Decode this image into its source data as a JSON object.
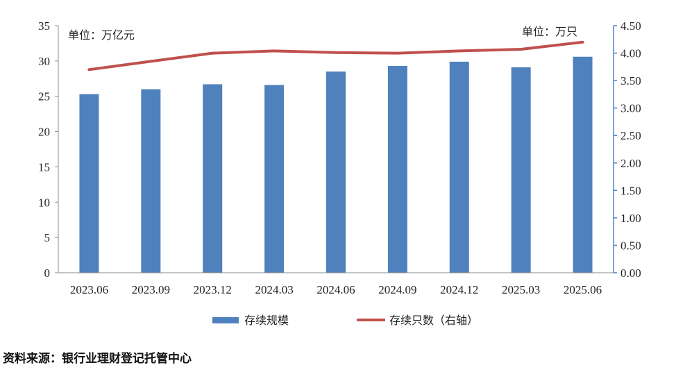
{
  "chart_data": {
    "type": "bar+line",
    "categories": [
      "2023.06",
      "2023.09",
      "2023.12",
      "2024.03",
      "2024.06",
      "2024.09",
      "2024.12",
      "2025.03",
      "2025.06"
    ],
    "series": [
      {
        "name": "存续规模",
        "type": "bar",
        "axis": "left",
        "values": [
          25.3,
          26.0,
          26.7,
          26.6,
          28.5,
          29.3,
          29.9,
          29.1,
          30.6
        ]
      },
      {
        "name": "存续只数（右轴）",
        "type": "line",
        "axis": "right",
        "values": [
          3.7,
          3.85,
          4.0,
          4.04,
          4.01,
          4.0,
          4.04,
          4.07,
          4.2
        ]
      }
    ],
    "y_left": {
      "min": 0,
      "max": 35,
      "step": 5,
      "unit_label": "单位：万亿元"
    },
    "y_right": {
      "min": 0,
      "max": 4.5,
      "step": 0.5,
      "decimals": 2,
      "unit_label": "单位：万只"
    },
    "legend_position": "bottom",
    "grid": false,
    "colors": {
      "bar": "#4F81BD",
      "line": "#C0504D",
      "right_axis": "#4F81BD",
      "left_axis": "#888888"
    }
  },
  "source_text": "资料来源：银行业理财登记托管中心"
}
